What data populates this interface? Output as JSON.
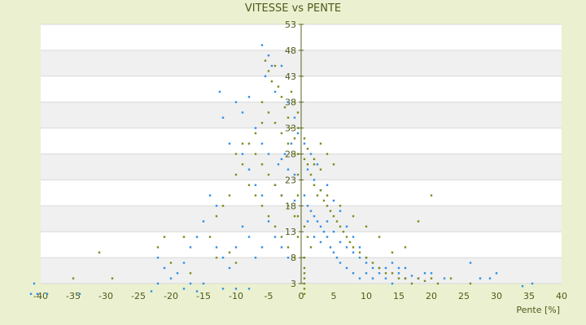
{
  "chart_data": {
    "type": "scatter",
    "title": "VITESSE vs PENTE",
    "xlabel": "Pente [%]",
    "ylabel": "",
    "xlim": [
      -40,
      40
    ],
    "ylim": [
      3,
      53
    ],
    "x_ticks": [
      "-40",
      "-35",
      "-30",
      "-25",
      "-20",
      "-15",
      "-10",
      "-5",
      "0",
      "5",
      "10",
      "15",
      "20",
      "25",
      "30",
      "35",
      "40"
    ],
    "y_ticks": [
      "3",
      "8",
      "13",
      "18",
      "23",
      "28",
      "33",
      "38",
      "43",
      "48",
      "53"
    ],
    "grid": true,
    "legend": "none",
    "colors": {
      "background": "#EBF1D0",
      "plot_band_light": "#FFFFFF",
      "plot_band_dark": "#F0F0F0",
      "series_blue": "#2F8FE5",
      "series_olive": "#7C8A1C",
      "axis_text": "#4D5A1C"
    },
    "series": [
      {
        "color": "#2F8FE5",
        "points": [
          [
            -41.5,
            1
          ],
          [
            -40.5,
            1
          ],
          [
            -41,
            3
          ],
          [
            -39,
            1
          ],
          [
            -34,
            1
          ],
          [
            -23,
            1.5
          ],
          [
            -22,
            3
          ],
          [
            -18,
            2
          ],
          [
            -17,
            3
          ],
          [
            -16,
            1.5
          ],
          [
            -15,
            3
          ],
          [
            -13,
            10
          ],
          [
            -12,
            2
          ],
          [
            -10,
            2
          ],
          [
            -8,
            2
          ],
          [
            -12.5,
            40
          ],
          [
            -12,
            35
          ],
          [
            -10,
            38
          ],
          [
            -9,
            36
          ],
          [
            -8,
            39
          ],
          [
            -11,
            30
          ],
          [
            -9,
            28
          ],
          [
            -6,
            49
          ],
          [
            -5,
            47
          ],
          [
            -4.5,
            45
          ],
          [
            -3,
            45
          ],
          [
            -5.5,
            43
          ],
          [
            -4,
            40
          ],
          [
            -2,
            38
          ],
          [
            -1,
            35
          ],
          [
            -7,
            33
          ],
          [
            -6,
            30
          ],
          [
            -5,
            28
          ],
          [
            -3,
            27
          ],
          [
            -2,
            25
          ],
          [
            -1,
            24
          ],
          [
            -8,
            25
          ],
          [
            -7,
            22
          ],
          [
            -6,
            20
          ],
          [
            -4,
            22
          ],
          [
            -3,
            20
          ],
          [
            -2,
            18
          ],
          [
            -1,
            19
          ],
          [
            0.5,
            20
          ],
          [
            1,
            18
          ],
          [
            1.5,
            17
          ],
          [
            2,
            16
          ],
          [
            2.5,
            15
          ],
          [
            3,
            14
          ],
          [
            3.5,
            13
          ],
          [
            1,
            15
          ],
          [
            2,
            12
          ],
          [
            3,
            11
          ],
          [
            4,
            12
          ],
          [
            4.5,
            10
          ],
          [
            5,
            9
          ],
          [
            5.5,
            8
          ],
          [
            6,
            7
          ],
          [
            7,
            6
          ],
          [
            8,
            5
          ],
          [
            9,
            4
          ],
          [
            10,
            5
          ],
          [
            11,
            4
          ],
          [
            12,
            5
          ],
          [
            13,
            4
          ],
          [
            14,
            3
          ],
          [
            15,
            5
          ],
          [
            16,
            4
          ],
          [
            17,
            4.5
          ],
          [
            18,
            4
          ],
          [
            19,
            5
          ],
          [
            20,
            5
          ],
          [
            22,
            4
          ],
          [
            26,
            7
          ],
          [
            27.5,
            4
          ],
          [
            29,
            4
          ],
          [
            30,
            5
          ],
          [
            34,
            2.5
          ],
          [
            35.5,
            3
          ],
          [
            -5,
            15
          ],
          [
            -4,
            12
          ],
          [
            -3,
            10
          ],
          [
            -2,
            8
          ],
          [
            -6,
            10
          ],
          [
            -7,
            8
          ],
          [
            -8,
            12
          ],
          [
            -9,
            14
          ],
          [
            -10,
            10
          ],
          [
            -11,
            6
          ],
          [
            -12,
            8
          ],
          [
            1,
            25
          ],
          [
            2,
            23
          ],
          [
            3,
            21
          ],
          [
            4,
            22
          ],
          [
            5,
            19
          ],
          [
            6,
            17
          ],
          [
            7,
            14
          ],
          [
            8,
            12
          ],
          [
            9,
            10
          ],
          [
            10,
            8
          ],
          [
            0.5,
            30
          ],
          [
            1.5,
            28
          ],
          [
            2.5,
            26
          ],
          [
            -0.5,
            32
          ],
          [
            -1.5,
            30
          ],
          [
            -2.5,
            28
          ],
          [
            -3.5,
            26
          ],
          [
            4,
            15
          ],
          [
            5,
            13
          ],
          [
            6,
            11
          ],
          [
            7,
            10
          ],
          [
            8,
            9
          ],
          [
            9,
            8
          ],
          [
            10,
            7
          ],
          [
            11,
            6
          ],
          [
            12,
            6
          ],
          [
            13,
            6
          ],
          [
            14,
            7
          ],
          [
            15,
            6
          ],
          [
            16,
            6
          ],
          [
            -14,
            20
          ],
          [
            -13,
            18
          ],
          [
            -15,
            15
          ],
          [
            -16,
            12
          ],
          [
            -17,
            10
          ],
          [
            -18,
            7
          ],
          [
            -19,
            5
          ],
          [
            -20,
            4
          ],
          [
            -21,
            6
          ],
          [
            -22,
            8
          ]
        ]
      },
      {
        "color": "#7C8A1C",
        "points": [
          [
            -31,
            9
          ],
          [
            -29,
            4
          ],
          [
            -35,
            4
          ],
          [
            -22,
            10
          ],
          [
            -21,
            12
          ],
          [
            -20,
            7
          ],
          [
            -18,
            12
          ],
          [
            -17,
            5
          ],
          [
            -14,
            12
          ],
          [
            -13,
            8
          ],
          [
            -11,
            9
          ],
          [
            -10,
            7
          ],
          [
            -5.5,
            46
          ],
          [
            -5,
            44
          ],
          [
            -4.5,
            42
          ],
          [
            -4,
            45
          ],
          [
            -3.5,
            41
          ],
          [
            -3,
            39
          ],
          [
            -2.5,
            37
          ],
          [
            -2,
            35
          ],
          [
            -1.5,
            33
          ],
          [
            -1,
            31
          ],
          [
            -0.5,
            33
          ],
          [
            -6,
            38
          ],
          [
            -5,
            36
          ],
          [
            -4,
            34
          ],
          [
            -3,
            32
          ],
          [
            -2,
            30
          ],
          [
            -1,
            28
          ],
          [
            0.5,
            27
          ],
          [
            1,
            26
          ],
          [
            1.5,
            24
          ],
          [
            2,
            22
          ],
          [
            2.5,
            20
          ],
          [
            3,
            21
          ],
          [
            3.5,
            19
          ],
          [
            4,
            18
          ],
          [
            4.5,
            17
          ],
          [
            5,
            16
          ],
          [
            5.5,
            15
          ],
          [
            6,
            14
          ],
          [
            6.5,
            13
          ],
          [
            7,
            12
          ],
          [
            7.5,
            11
          ],
          [
            8,
            10
          ],
          [
            9,
            9
          ],
          [
            10,
            8
          ],
          [
            11,
            7
          ],
          [
            12,
            6
          ],
          [
            13,
            5
          ],
          [
            14,
            5
          ],
          [
            15,
            4
          ],
          [
            16,
            4
          ],
          [
            17,
            3
          ],
          [
            18,
            4
          ],
          [
            19,
            3.5
          ],
          [
            20,
            4
          ],
          [
            21,
            3
          ],
          [
            23,
            4
          ],
          [
            26,
            3
          ],
          [
            20,
            20
          ],
          [
            18,
            15
          ],
          [
            16,
            10
          ],
          [
            14,
            9
          ],
          [
            12,
            12
          ],
          [
            10,
            14
          ],
          [
            8,
            16
          ],
          [
            6,
            18
          ],
          [
            4,
            20
          ],
          [
            2,
            26
          ],
          [
            -7,
            28
          ],
          [
            -6,
            26
          ],
          [
            -5,
            24
          ],
          [
            -4,
            22
          ],
          [
            -3,
            20
          ],
          [
            -2,
            18
          ],
          [
            -1,
            16
          ],
          [
            0.5,
            14
          ],
          [
            1,
            12
          ],
          [
            1.5,
            10
          ],
          [
            -8,
            22
          ],
          [
            -7,
            20
          ],
          [
            -6,
            18
          ],
          [
            -5,
            16
          ],
          [
            -4,
            14
          ],
          [
            -3,
            12
          ],
          [
            -2,
            10
          ],
          [
            -1,
            8
          ],
          [
            0.5,
            6
          ],
          [
            0.5,
            4
          ],
          [
            -9,
            26
          ],
          [
            -10,
            24
          ],
          [
            -11,
            20
          ],
          [
            -12,
            18
          ],
          [
            -13,
            16
          ],
          [
            -8,
            30
          ],
          [
            -7,
            32
          ],
          [
            -6,
            34
          ],
          [
            -9,
            30
          ],
          [
            -10,
            28
          ],
          [
            3,
            30
          ],
          [
            4,
            28
          ],
          [
            5,
            26
          ],
          [
            3,
            25
          ],
          [
            2,
            27
          ],
          [
            1,
            29
          ],
          [
            0.5,
            31
          ],
          [
            -0.5,
            36
          ],
          [
            -1,
            38
          ],
          [
            -1.5,
            40
          ],
          [
            0.5,
            2
          ],
          [
            0.5,
            1
          ],
          [
            0.5,
            3
          ],
          [
            0.5,
            5
          ],
          [
            0.5,
            8
          ],
          [
            -0.5,
            12
          ],
          [
            -0.5,
            16
          ],
          [
            -0.5,
            20
          ],
          [
            -0.5,
            24
          ],
          [
            -0.5,
            28
          ]
        ]
      }
    ]
  }
}
